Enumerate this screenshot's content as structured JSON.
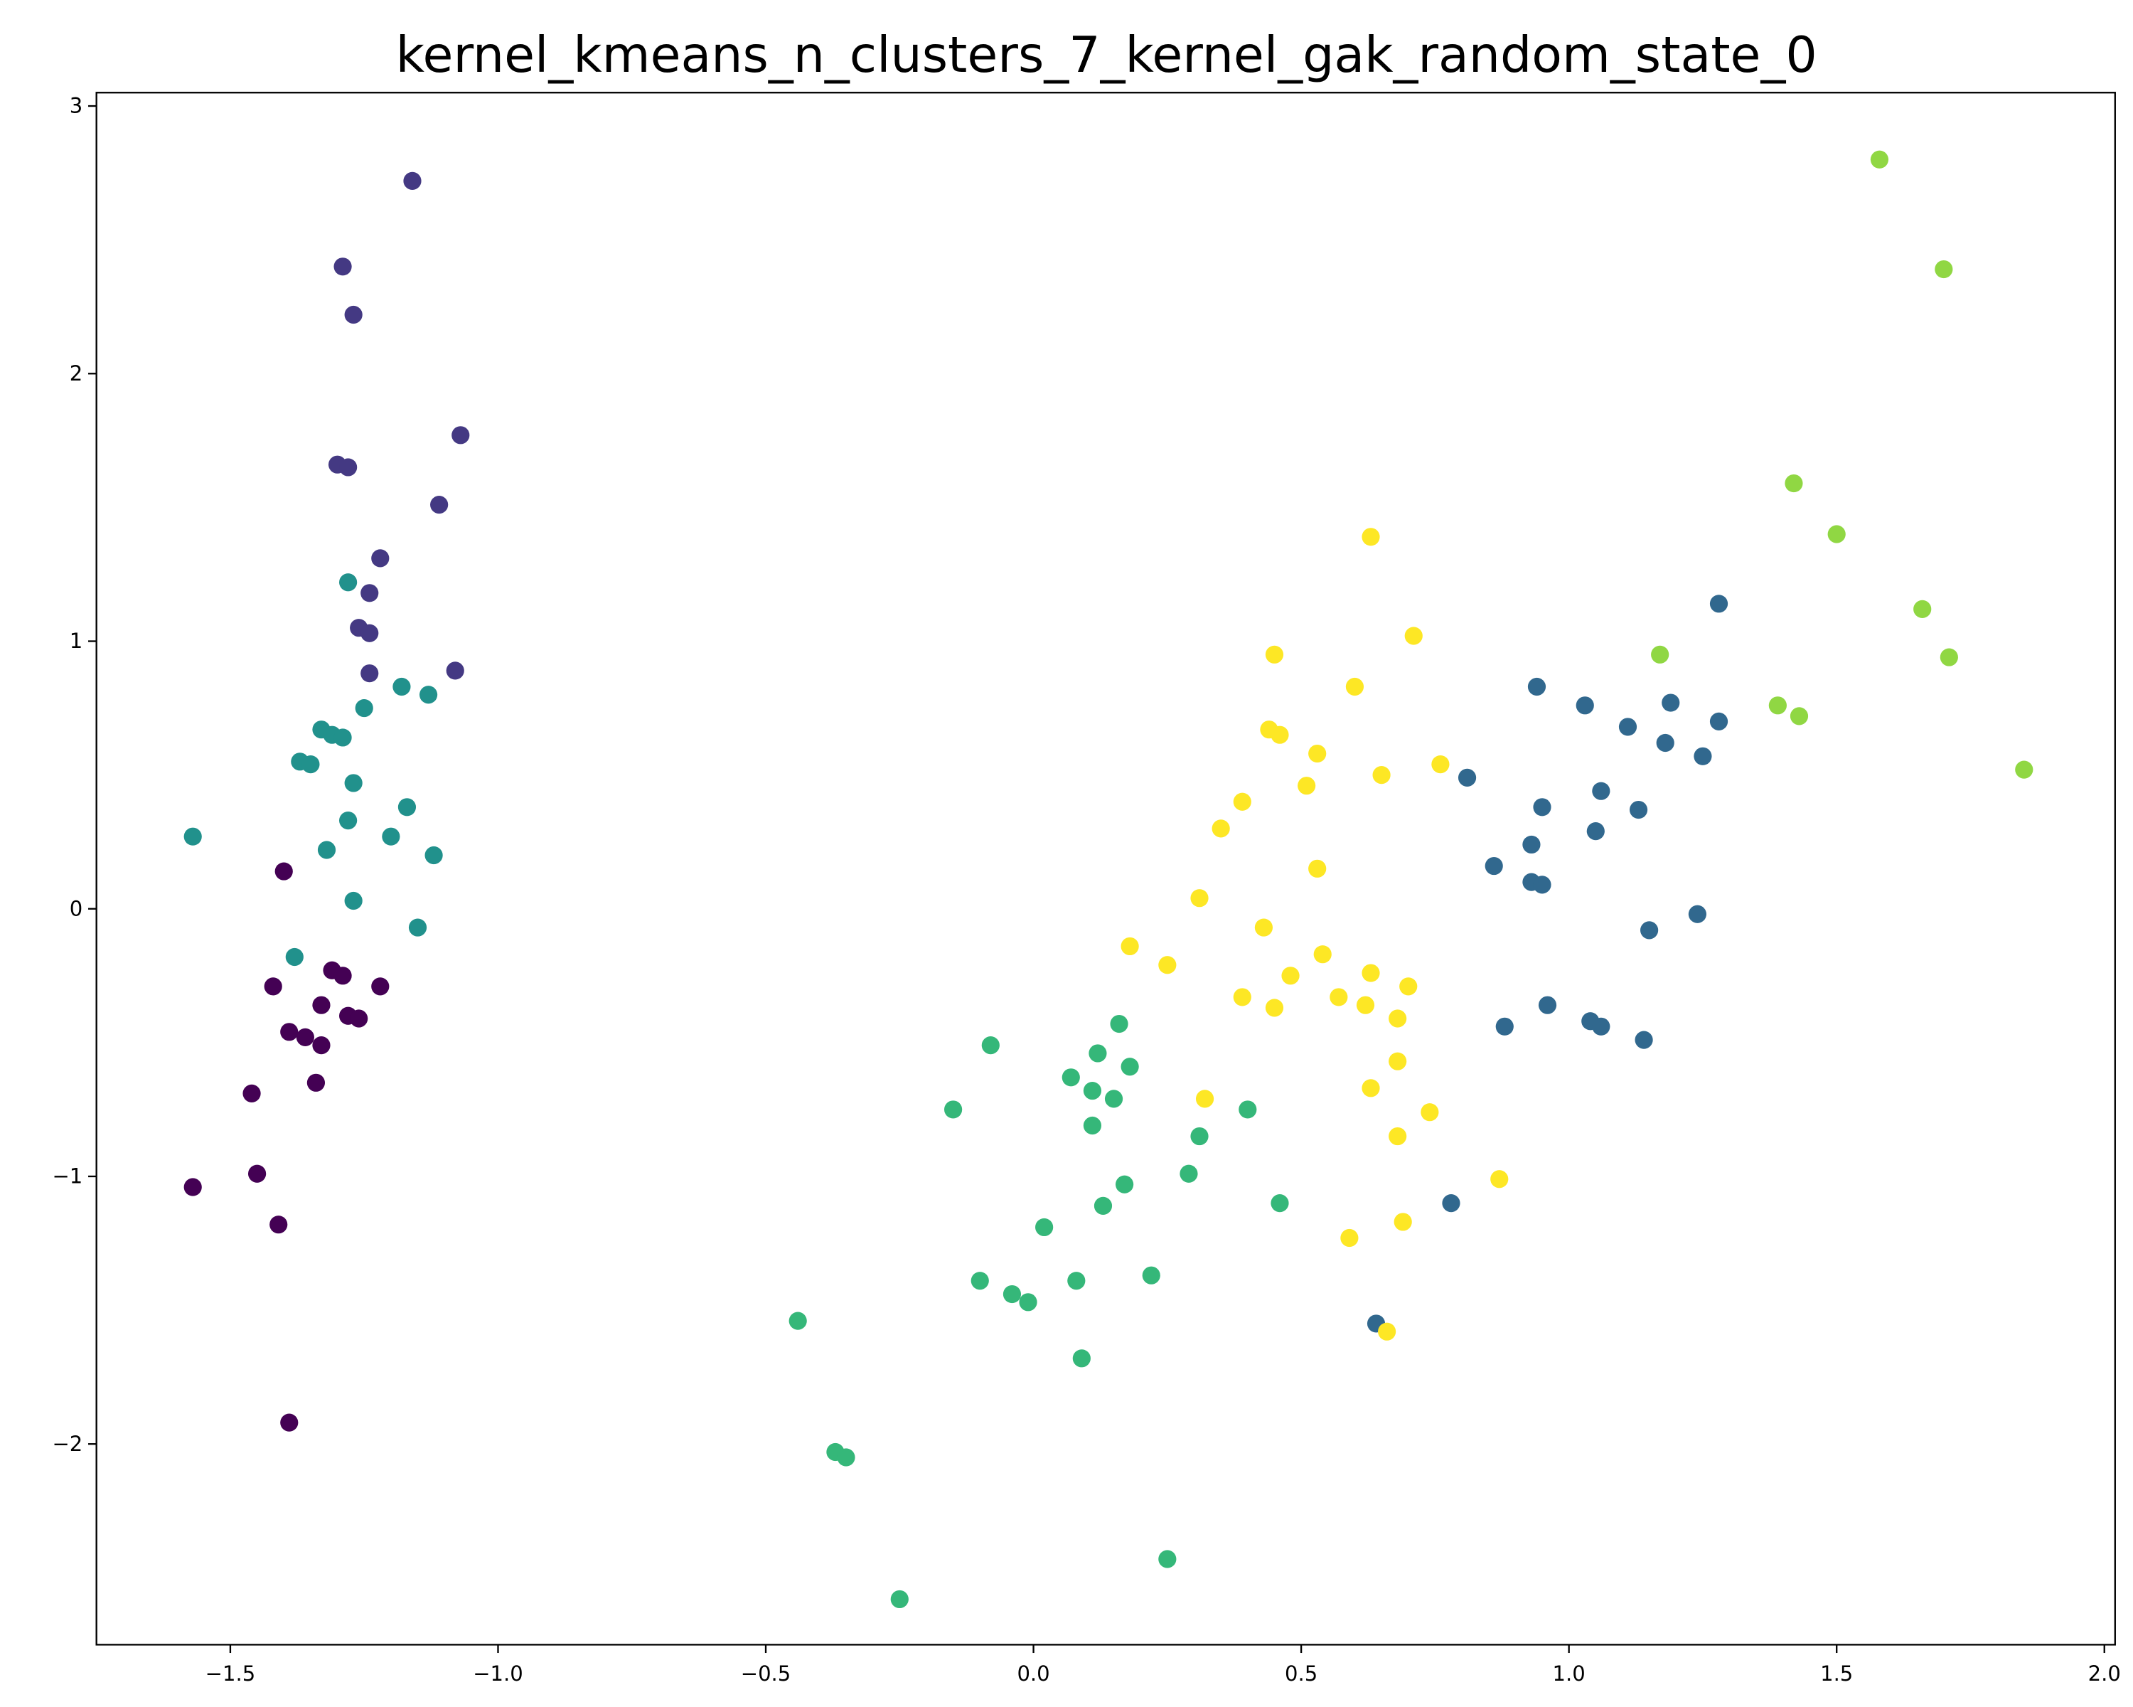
{
  "chart_data": {
    "type": "scatter",
    "title": "kernel_kmeans_n_clusters_7_kernel_gak_random_state_0",
    "xlabel": "",
    "ylabel": "",
    "xlim": [
      -1.75,
      2.02
    ],
    "ylim": [
      -2.75,
      3.05
    ],
    "grid": false,
    "legend": "none",
    "x_ticks": [
      -1.5,
      -1.0,
      -0.5,
      0.0,
      0.5,
      1.0,
      1.5,
      2.0
    ],
    "x_tick_labels": [
      "−1.5",
      "−1.0",
      "−0.5",
      "0.0",
      "0.5",
      "1.0",
      "1.5",
      "2.0"
    ],
    "y_ticks": [
      -2,
      -1,
      0,
      1,
      2,
      3
    ],
    "y_tick_labels": [
      "−2",
      "−1",
      "0",
      "1",
      "2",
      "3"
    ],
    "series": [
      {
        "color": "#440154",
        "points": [
          [
            -1.4,
            0.14
          ],
          [
            -1.31,
            -0.23
          ],
          [
            -1.29,
            -0.25
          ],
          [
            -1.42,
            -0.29
          ],
          [
            -1.22,
            -0.29
          ],
          [
            -1.33,
            -0.36
          ],
          [
            -1.28,
            -0.4
          ],
          [
            -1.26,
            -0.41
          ],
          [
            -1.39,
            -0.46
          ],
          [
            -1.36,
            -0.48
          ],
          [
            -1.33,
            -0.51
          ],
          [
            -1.34,
            -0.65
          ],
          [
            -1.46,
            -0.69
          ],
          [
            -1.45,
            -0.99
          ],
          [
            -1.57,
            -1.04
          ],
          [
            -1.41,
            -1.18
          ],
          [
            -1.39,
            -1.92
          ]
        ]
      },
      {
        "color": "#443983",
        "points": [
          [
            -1.16,
            2.72
          ],
          [
            -1.29,
            2.4
          ],
          [
            -1.27,
            2.22
          ],
          [
            -1.07,
            1.77
          ],
          [
            -1.3,
            1.66
          ],
          [
            -1.28,
            1.65
          ],
          [
            -1.11,
            1.51
          ],
          [
            -1.22,
            1.31
          ],
          [
            -1.24,
            1.18
          ],
          [
            -1.26,
            1.05
          ],
          [
            -1.24,
            1.03
          ],
          [
            -1.24,
            0.88
          ],
          [
            -1.08,
            0.89
          ]
        ]
      },
      {
        "color": "#31688e",
        "points": [
          [
            1.28,
            1.14
          ],
          [
            0.94,
            0.83
          ],
          [
            1.03,
            0.76
          ],
          [
            1.19,
            0.77
          ],
          [
            1.11,
            0.68
          ],
          [
            1.28,
            0.7
          ],
          [
            1.18,
            0.62
          ],
          [
            1.25,
            0.57
          ],
          [
            0.81,
            0.49
          ],
          [
            1.06,
            0.44
          ],
          [
            0.95,
            0.38
          ],
          [
            1.13,
            0.37
          ],
          [
            1.05,
            0.29
          ],
          [
            0.93,
            0.24
          ],
          [
            0.86,
            0.16
          ],
          [
            0.93,
            0.1
          ],
          [
            0.95,
            0.09
          ],
          [
            1.24,
            -0.02
          ],
          [
            1.15,
            -0.08
          ],
          [
            0.96,
            -0.36
          ],
          [
            1.04,
            -0.42
          ],
          [
            1.06,
            -0.44
          ],
          [
            0.88,
            -0.44
          ],
          [
            1.14,
            -0.49
          ],
          [
            0.78,
            -1.1
          ],
          [
            0.64,
            -1.55
          ]
        ]
      },
      {
        "color": "#21918c",
        "points": [
          [
            -1.28,
            1.22
          ],
          [
            -1.18,
            0.83
          ],
          [
            -1.13,
            0.8
          ],
          [
            -1.25,
            0.75
          ],
          [
            -1.33,
            0.67
          ],
          [
            -1.31,
            0.65
          ],
          [
            -1.29,
            0.64
          ],
          [
            -1.37,
            0.55
          ],
          [
            -1.35,
            0.54
          ],
          [
            -1.27,
            0.47
          ],
          [
            -1.17,
            0.38
          ],
          [
            -1.28,
            0.33
          ],
          [
            -1.57,
            0.27
          ],
          [
            -1.2,
            0.27
          ],
          [
            -1.32,
            0.22
          ],
          [
            -1.12,
            0.2
          ],
          [
            -1.27,
            0.03
          ],
          [
            -1.15,
            -0.07
          ],
          [
            -1.38,
            -0.18
          ]
        ]
      },
      {
        "color": "#35b779",
        "points": [
          [
            0.16,
            -0.43
          ],
          [
            -0.08,
            -0.51
          ],
          [
            0.12,
            -0.54
          ],
          [
            0.18,
            -0.59
          ],
          [
            0.07,
            -0.63
          ],
          [
            0.11,
            -0.68
          ],
          [
            0.15,
            -0.71
          ],
          [
            -0.15,
            -0.75
          ],
          [
            0.4,
            -0.75
          ],
          [
            0.11,
            -0.81
          ],
          [
            0.31,
            -0.85
          ],
          [
            0.29,
            -0.99
          ],
          [
            0.17,
            -1.03
          ],
          [
            0.46,
            -1.1
          ],
          [
            0.13,
            -1.11
          ],
          [
            0.02,
            -1.19
          ],
          [
            0.22,
            -1.37
          ],
          [
            -0.1,
            -1.39
          ],
          [
            0.08,
            -1.39
          ],
          [
            -0.04,
            -1.44
          ],
          [
            -0.01,
            -1.47
          ],
          [
            -0.44,
            -1.54
          ],
          [
            0.09,
            -1.68
          ],
          [
            -0.37,
            -2.03
          ],
          [
            -0.35,
            -2.05
          ],
          [
            0.25,
            -2.43
          ],
          [
            -0.25,
            -2.58
          ]
        ]
      },
      {
        "color": "#90d743",
        "points": [
          [
            1.58,
            2.8
          ],
          [
            1.7,
            2.39
          ],
          [
            1.42,
            1.59
          ],
          [
            1.5,
            1.4
          ],
          [
            1.66,
            1.12
          ],
          [
            1.17,
            0.95
          ],
          [
            1.71,
            0.94
          ],
          [
            1.39,
            0.76
          ],
          [
            1.43,
            0.72
          ],
          [
            1.85,
            0.52
          ]
        ]
      },
      {
        "color": "#fde725",
        "points": [
          [
            0.63,
            1.39
          ],
          [
            0.71,
            1.02
          ],
          [
            0.45,
            0.95
          ],
          [
            0.6,
            0.83
          ],
          [
            0.44,
            0.67
          ],
          [
            0.46,
            0.65
          ],
          [
            0.53,
            0.58
          ],
          [
            0.76,
            0.54
          ],
          [
            0.65,
            0.5
          ],
          [
            0.51,
            0.46
          ],
          [
            0.39,
            0.4
          ],
          [
            0.35,
            0.3
          ],
          [
            0.53,
            0.15
          ],
          [
            0.31,
            0.04
          ],
          [
            0.43,
            -0.07
          ],
          [
            0.18,
            -0.14
          ],
          [
            0.25,
            -0.21
          ],
          [
            0.54,
            -0.17
          ],
          [
            0.63,
            -0.24
          ],
          [
            0.48,
            -0.25
          ],
          [
            0.7,
            -0.29
          ],
          [
            0.39,
            -0.33
          ],
          [
            0.57,
            -0.33
          ],
          [
            0.62,
            -0.36
          ],
          [
            0.45,
            -0.37
          ],
          [
            0.68,
            -0.41
          ],
          [
            0.68,
            -0.57
          ],
          [
            0.63,
            -0.67
          ],
          [
            0.32,
            -0.71
          ],
          [
            0.74,
            -0.76
          ],
          [
            0.68,
            -0.85
          ],
          [
            0.87,
            -1.01
          ],
          [
            0.69,
            -1.17
          ],
          [
            0.59,
            -1.23
          ],
          [
            0.66,
            -1.58
          ]
        ]
      }
    ]
  }
}
